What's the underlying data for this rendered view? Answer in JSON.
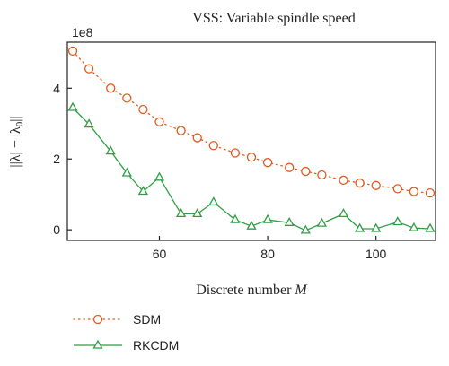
{
  "chart_data": {
    "type": "line",
    "title": "VSS: Variable spindle speed",
    "xlabel": "Discrete number M",
    "ylabel": "||λ| − |λ0||",
    "y_multiplier_label": "1e8",
    "xlim": [
      43,
      111
    ],
    "ylim": [
      -0.3,
      5.3
    ],
    "xticks": [
      60,
      80,
      100
    ],
    "yticks": [
      0,
      2,
      4
    ],
    "grid": false,
    "legend_position": "below plot, left",
    "series": [
      {
        "name": "SDM",
        "color": "#e05a1e",
        "line_style": "dotted",
        "marker": "circle",
        "x": [
          44,
          47,
          51,
          54,
          57,
          60,
          64,
          67,
          70,
          74,
          77,
          80,
          84,
          87,
          90,
          94,
          97,
          100,
          104,
          107,
          110
        ],
        "y": [
          5.05,
          4.55,
          4.0,
          3.72,
          3.4,
          3.05,
          2.8,
          2.6,
          2.38,
          2.17,
          2.05,
          1.9,
          1.76,
          1.65,
          1.55,
          1.4,
          1.32,
          1.25,
          1.16,
          1.08,
          1.04
        ]
      },
      {
        "name": "RKCDM",
        "color": "#2e9e44",
        "line_style": "solid",
        "marker": "triangle",
        "x": [
          44,
          47,
          51,
          54,
          57,
          60,
          64,
          67,
          70,
          74,
          77,
          80,
          84,
          87,
          90,
          94,
          97,
          100,
          104,
          107,
          110
        ],
        "y": [
          3.45,
          2.98,
          2.22,
          1.6,
          1.08,
          1.48,
          0.45,
          0.45,
          0.78,
          0.28,
          0.1,
          0.28,
          0.2,
          -0.02,
          0.18,
          0.45,
          0.03,
          0.03,
          0.22,
          0.05,
          0.03
        ]
      }
    ]
  }
}
